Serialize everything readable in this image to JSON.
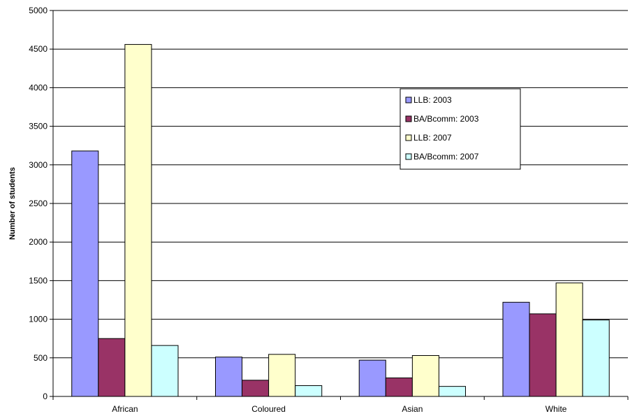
{
  "chart_data": {
    "type": "bar",
    "title": "",
    "xlabel": "",
    "ylabel": "Number of students",
    "ylim": [
      0,
      5000
    ],
    "yticks": [
      0,
      500,
      1000,
      1500,
      2000,
      2500,
      3000,
      3500,
      4000,
      4500,
      5000
    ],
    "grid": true,
    "legend_position": "top-right",
    "categories": [
      "African",
      "Coloured",
      "Asian",
      "White"
    ],
    "series": [
      {
        "name": "LLB: 2003",
        "color": "#9999FF",
        "values": [
          3180,
          510,
          470,
          1220
        ]
      },
      {
        "name": "BA/Bcomm: 2003",
        "color": "#993366",
        "values": [
          750,
          210,
          240,
          1070
        ]
      },
      {
        "name": "LLB: 2007",
        "color": "#FFFFCC",
        "values": [
          4560,
          545,
          530,
          1470
        ]
      },
      {
        "name": "BA/Bcomm: 2007",
        "color": "#CCFFFF",
        "values": [
          660,
          140,
          130,
          990
        ]
      }
    ]
  }
}
